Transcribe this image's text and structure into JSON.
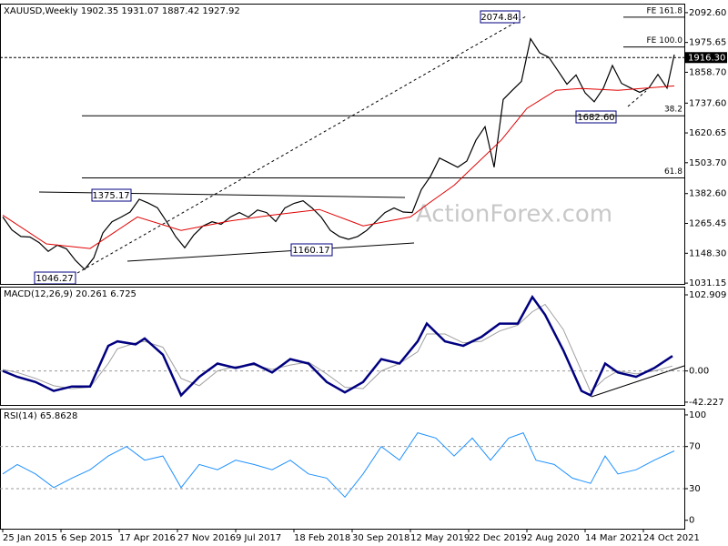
{
  "chart_data": [
    {
      "type": "line",
      "title": "XAUUSD,Weekly  1902.35 1931.07 1887.42 1927.92",
      "watermark": "ActionForex.com",
      "xlim": [
        -1.5,
        374.5
      ],
      "ylim": [
        1028,
        2128
      ],
      "yticks": [
        {
          "value": 2092.6,
          "label": "2092.60"
        },
        1975.65,
        {
          "value": 1858.7,
          "label": "1858.70"
        },
        {
          "value": 1737.6,
          "label": "1737.60"
        },
        1620.65,
        {
          "value": 1503.7,
          "label": "1503.70"
        },
        {
          "value": 1382.6,
          "label": "1382.60"
        },
        1265.45,
        {
          "value": 1148.3,
          "label": "1148.30"
        },
        1031.15
      ],
      "x": [
        0,
        5,
        10,
        15,
        20,
        25,
        30,
        35,
        40,
        45,
        50,
        55,
        60,
        65,
        70,
        75,
        80,
        85,
        90,
        95,
        100,
        105,
        110,
        115,
        120,
        125,
        130,
        135,
        140,
        145,
        150,
        155,
        160,
        165,
        170,
        175,
        180,
        185,
        190,
        195,
        200,
        205,
        210,
        215,
        220,
        225,
        230,
        235,
        240,
        245,
        250,
        255,
        260,
        265,
        270,
        275,
        280,
        285,
        290,
        295,
        300,
        305,
        310,
        315,
        320,
        325,
        330,
        335,
        340,
        345,
        350,
        355,
        360,
        365,
        369
      ],
      "series": [
        {
          "color": "#000000",
          "values": [
            1291,
            1240,
            1214,
            1212,
            1190,
            1156,
            1180,
            1166,
            1120,
            1085,
            1130,
            1228,
            1272,
            1290,
            1310,
            1360,
            1345,
            1327,
            1273,
            1214,
            1170,
            1220,
            1255,
            1272,
            1262,
            1290,
            1308,
            1290,
            1318,
            1308,
            1273,
            1326,
            1344,
            1354,
            1326,
            1290,
            1238,
            1214,
            1203,
            1214,
            1238,
            1273,
            1308,
            1326,
            1310,
            1308,
            1398,
            1450,
            1522,
            1504,
            1486,
            1510,
            1592,
            1645,
            1486,
            1752,
            1788,
            1823,
            1990,
            1935,
            1918,
            1865,
            1812,
            1848,
            1778,
            1743,
            1796,
            1885,
            1815,
            1797,
            1780,
            1797,
            1850,
            1797,
            1927.92
          ]
        },
        {
          "color": "#e00000",
          "x": [
            0,
            24,
            48,
            74,
            98,
            124,
            148,
            174,
            198,
            224,
            234,
            248,
            274,
            288,
            304,
            318,
            338,
            369
          ],
          "values": [
            1298,
            1185,
            1167,
            1291,
            1238,
            1274,
            1298,
            1320,
            1256,
            1291,
            1344,
            1415,
            1593,
            1717,
            1788,
            1795,
            1788,
            1805
          ]
        }
      ],
      "current_price": {
        "value": 1916.3,
        "label": "1916.30"
      },
      "levels": [
        {
          "value": 2075,
          "label": "FE 161.8"
        },
        {
          "value": 1958,
          "label": "FE 100.0"
        },
        {
          "value": 1688,
          "label": "38.2"
        },
        {
          "value": 1444,
          "label": "61.8"
        }
      ],
      "annotations": [
        "2074.84",
        "1375.17",
        "1160.17",
        "1046.27",
        "1682.60"
      ]
    },
    {
      "type": "line",
      "title": "MACD(12,26,9) 20.261 6.725",
      "xlim": [
        -1.5,
        374.5
      ],
      "ylim": [
        -46,
        114
      ],
      "yticks": [
        102.909,
        {
          "value": 0,
          "label": "0.00"
        },
        -42.227
      ],
      "levels": [
        0
      ],
      "x": [
        0,
        8,
        18,
        28,
        38,
        48,
        58,
        63,
        73,
        78,
        88,
        98,
        108,
        118,
        128,
        138,
        148,
        158,
        168,
        178,
        188,
        198,
        208,
        218,
        228,
        233,
        243,
        253,
        263,
        273,
        283,
        291,
        298,
        308,
        318,
        323,
        331,
        338,
        348,
        358,
        368
      ],
      "series": [
        {
          "color": "#a0a0a0",
          "values": [
            2,
            -2,
            -10,
            -20,
            -24,
            -22,
            10,
            30,
            38,
            40,
            32,
            -10,
            -20,
            0,
            6,
            8,
            2,
            8,
            12,
            -4,
            -22,
            -24,
            0,
            10,
            26,
            50,
            50,
            38,
            40,
            54,
            62,
            80,
            90,
            56,
            0,
            -28,
            -10,
            0,
            -4,
            0,
            6.725
          ]
        },
        {
          "color": "#000080",
          "values": [
            0,
            -8,
            -15,
            -27,
            -21,
            -21,
            34,
            40,
            36,
            44,
            22,
            -33,
            -8,
            10,
            4,
            10,
            -2,
            16,
            10,
            -15,
            -29,
            -15,
            16,
            10,
            40,
            64,
            40,
            34,
            46,
            64,
            64,
            100,
            76,
            28,
            -27,
            -33,
            10,
            -2,
            -8,
            4,
            20.261
          ]
        }
      ]
    },
    {
      "type": "line",
      "title": "RSI(14) 65.8628",
      "xlim": [
        -1.5,
        374.5
      ],
      "ylim": [
        -8,
        106
      ],
      "yticks": [
        100,
        70,
        30,
        0
      ],
      "levels": [
        70,
        30
      ],
      "xticks": [
        {
          "value": 0,
          "label": "25 Jan 2015"
        },
        {
          "value": 32,
          "label": "6 Sep 2015"
        },
        {
          "value": 64,
          "label": "17 Apr 2016"
        },
        {
          "value": 96,
          "label": "27 Nov 2016"
        },
        {
          "value": 128,
          "label": "9 Jul 2017"
        },
        {
          "value": 160,
          "label": "18 Feb 2018"
        },
        {
          "value": 192,
          "label": "30 Sep 2018"
        },
        {
          "value": 224,
          "label": "12 May 2019"
        },
        {
          "value": 256,
          "label": "22 Dec 2019"
        },
        {
          "value": 288,
          "label": "2 Aug 2020"
        },
        {
          "value": 320,
          "label": "14 Mar 2021"
        },
        {
          "value": 352,
          "label": "24 Oct 2021"
        }
      ],
      "x": [
        0,
        8,
        18,
        28,
        38,
        48,
        58,
        68,
        78,
        88,
        98,
        108,
        118,
        128,
        138,
        148,
        158,
        168,
        178,
        188,
        198,
        208,
        218,
        228,
        238,
        248,
        258,
        268,
        278,
        286,
        293,
        303,
        313,
        323,
        331,
        338,
        348,
        358,
        369
      ],
      "series": [
        {
          "color": "#1e90ff",
          "values": [
            44,
            53,
            44,
            31,
            40,
            48,
            61,
            70,
            57,
            61,
            31,
            53,
            48,
            57,
            53,
            48,
            57,
            44,
            40,
            22,
            44,
            70,
            57,
            83,
            78,
            61,
            78,
            57,
            78,
            83,
            57,
            53,
            40,
            35,
            61,
            44,
            48,
            57,
            65.8628
          ]
        }
      ]
    }
  ]
}
